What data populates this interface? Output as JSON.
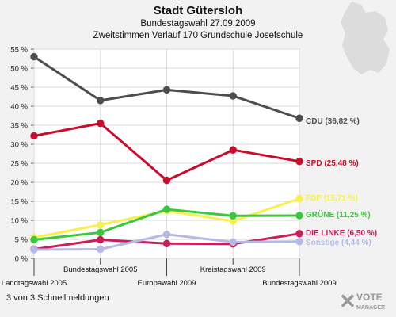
{
  "header": {
    "title": "Stadt Gütersloh",
    "subtitle": "Bundestagswahl 27.09.2009",
    "subtitle2": "Zweitstimmen Verlauf 170 Grundschule Josefschule"
  },
  "footer": {
    "text": "3 von 3 Schnellmeldungen"
  },
  "logo": {
    "line1": "VOTE",
    "line2": "MANAGER"
  },
  "chart_data": {
    "type": "line",
    "categories": [
      "Landtagswahl 2005",
      "Bundestagswahl 2005",
      "Europawahl 2009",
      "Kreistagswahl 2009",
      "Bundestagswahl 2009"
    ],
    "ylim": [
      0,
      55
    ],
    "yticks": [
      "0 %",
      "5 %",
      "10 %",
      "15 %",
      "20 %",
      "25 %",
      "30 %",
      "35 %",
      "40 %",
      "45 %",
      "50 %",
      "55 %"
    ],
    "grid": true,
    "series": [
      {
        "name": "CDU",
        "label": "CDU (36,82 %)",
        "color": "#4d4d4d",
        "values": [
          53.0,
          41.5,
          44.3,
          42.7,
          36.82
        ]
      },
      {
        "name": "SPD",
        "label": "SPD (25,48 %)",
        "color": "#cc0a2a",
        "values": [
          32.2,
          35.5,
          20.5,
          28.5,
          25.48
        ]
      },
      {
        "name": "FDP",
        "label": "FDP (15,71 %)",
        "color": "#f5f050",
        "values": [
          5.5,
          8.8,
          12.5,
          9.8,
          15.71
        ]
      },
      {
        "name": "GRÜNE",
        "label": "GRÜNE (11,25 %)",
        "color": "#3cc83c",
        "values": [
          4.9,
          6.8,
          12.9,
          11.2,
          11.25
        ]
      },
      {
        "name": "DIE LINKE",
        "label": "DIE LINKE (6,50 %)",
        "color": "#c81e5a",
        "values": [
          2.4,
          4.9,
          3.9,
          3.8,
          6.5
        ]
      },
      {
        "name": "Sonstige",
        "label": "Sonstige (4,44 %)",
        "color": "#b4b9e6",
        "values": [
          2.3,
          2.4,
          6.3,
          4.3,
          4.44
        ]
      }
    ]
  }
}
